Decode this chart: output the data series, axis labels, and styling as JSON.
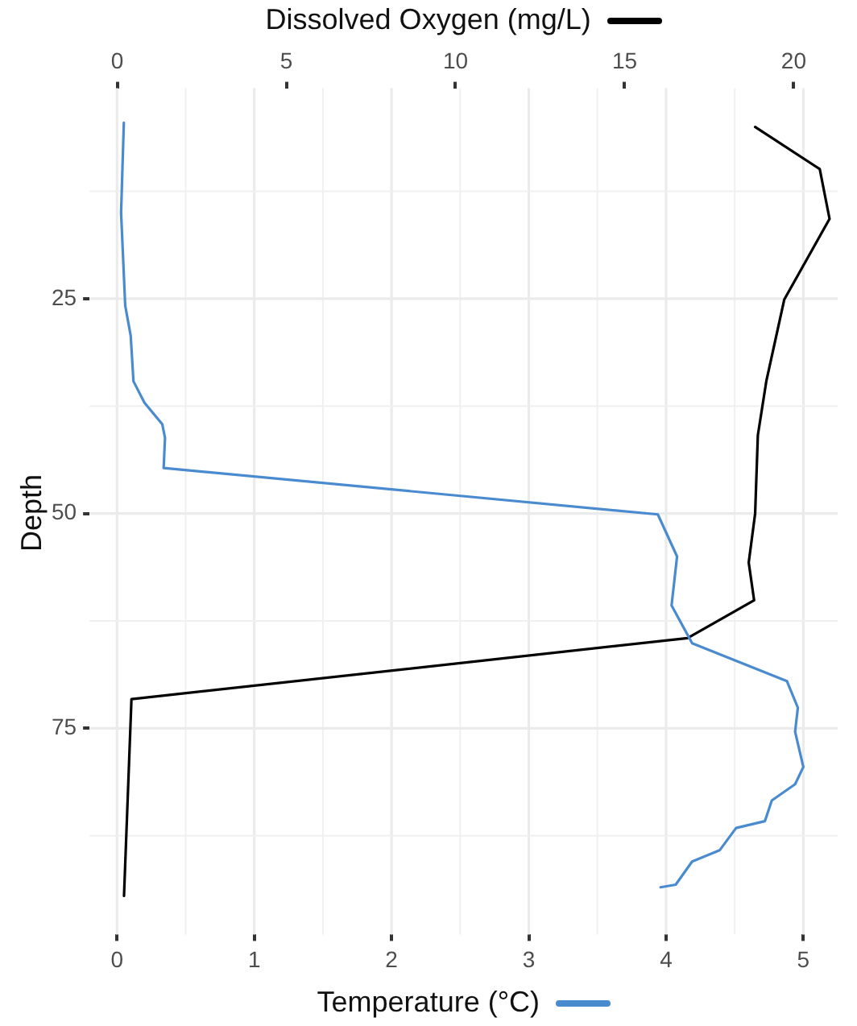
{
  "chart_data": {
    "type": "line",
    "xlabel": "Temperature (°C)",
    "x2label": "Dissolved Oxygen (mg/L)",
    "ylabel": "Depth",
    "xlim": [
      -0.2,
      5.25
    ],
    "xticks": [
      0,
      1,
      2,
      3,
      4,
      5
    ],
    "x2lim": [
      -0.82,
      21.3
    ],
    "x2ticks": [
      0,
      5,
      10,
      15,
      20
    ],
    "ylim": [
      99,
      0.5
    ],
    "yticks": [
      25,
      50,
      75
    ],
    "grid": true,
    "marker": "none",
    "line_style": "solid",
    "series": [
      {
        "color": "#4a8bd0",
        "x": [
          0.05,
          0.03,
          0.06,
          0.1,
          0.12,
          0.2,
          0.33,
          0.35,
          0.34,
          3.94,
          4.08,
          4.04,
          4.19,
          4.88,
          4.96,
          4.94,
          5.0,
          4.94,
          4.77,
          4.72,
          4.51,
          4.39,
          4.19,
          4.07,
          3.96
        ],
        "values": [
          4.5,
          15,
          25.8,
          29.3,
          34.6,
          37.1,
          39.6,
          41.2,
          44.7,
          50.1,
          55.0,
          60.7,
          65.1,
          69.5,
          72.6,
          75.4,
          79.5,
          81.5,
          83.4,
          85.8,
          86.6,
          89.2,
          90.5,
          93.2,
          93.5
        ]
      },
      {
        "color": "#000000",
        "axis": "x2",
        "x": [
          18.86,
          20.77,
          21.06,
          19.72,
          19.19,
          18.94,
          18.86,
          18.67,
          18.83,
          16.86,
          0.42,
          0.2
        ],
        "values": [
          5.0,
          9.9,
          15.7,
          25.1,
          34.6,
          40.9,
          50.0,
          55.7,
          60.1,
          64.5,
          71.6,
          94.5
        ]
      }
    ]
  }
}
